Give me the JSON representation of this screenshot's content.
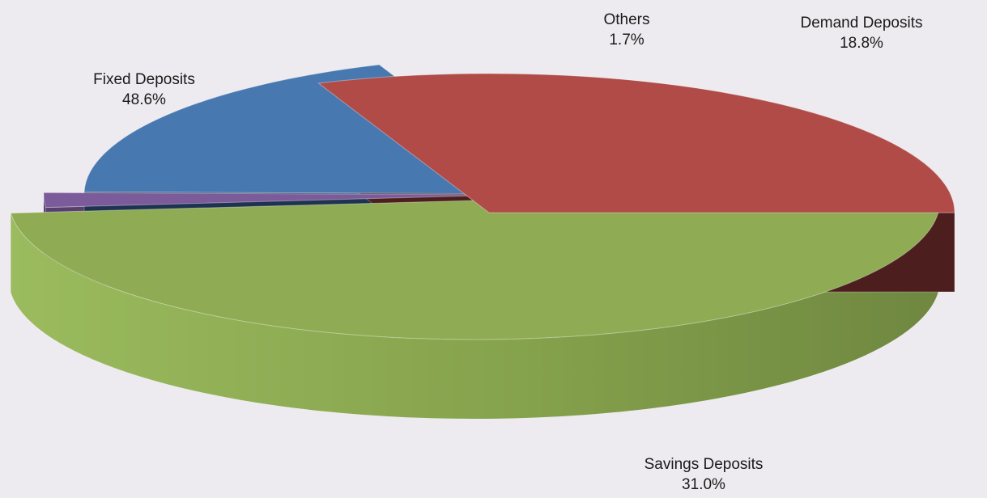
{
  "chart_data": {
    "type": "pie",
    "style": "3d-exploded",
    "slices": [
      {
        "name": "Fixed Deposits",
        "value": 48.6,
        "label": "48.6%",
        "color": "#8fac55",
        "side_color": "#6f8740"
      },
      {
        "name": "Others",
        "value": 1.7,
        "label": "1.7%",
        "color": "#7b5b9a",
        "side_color": "#57406e"
      },
      {
        "name": "Demand Deposits",
        "value": 18.8,
        "label": "18.8%",
        "color": "#4878b0",
        "side_color": "#1d3350"
      },
      {
        "name": "Savings Deposits",
        "value": 31.0,
        "label": "31.0%",
        "color": "#b04b48",
        "side_color": "#4c1e1e"
      }
    ]
  }
}
